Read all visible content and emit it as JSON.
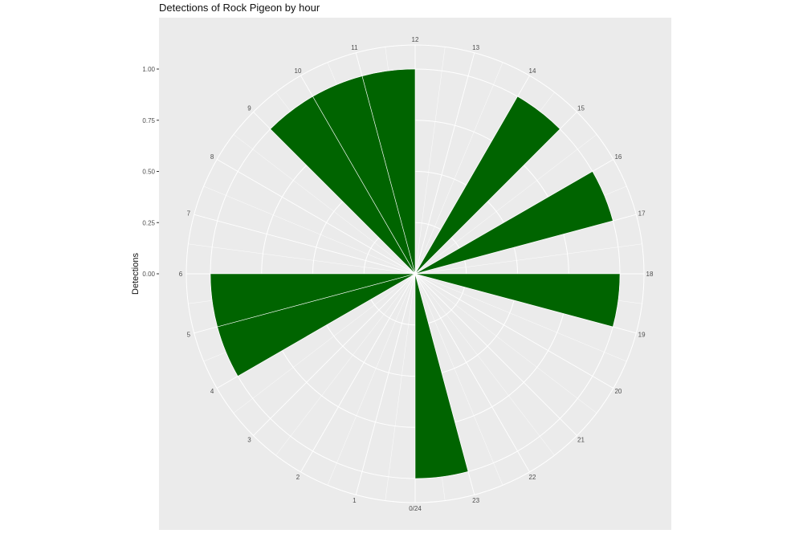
{
  "chart_data": {
    "type": "bar",
    "coord": "polar",
    "title": "Detections of Rock Pigeon by hour",
    "ylabel": "Detections",
    "xlabel": "",
    "categories": [
      "0/24",
      "1",
      "2",
      "3",
      "4",
      "5",
      "6",
      "7",
      "8",
      "9",
      "10",
      "11",
      "12",
      "13",
      "14",
      "15",
      "16",
      "17",
      "18",
      "19",
      "20",
      "21",
      "22",
      "23"
    ],
    "values": [
      0,
      0,
      0,
      0,
      1,
      1,
      0,
      0,
      0,
      1,
      1,
      1,
      0,
      0,
      1,
      0,
      1,
      0,
      1,
      0,
      0,
      0,
      0,
      1
    ],
    "y_ticks": [
      "0.00",
      "0.25",
      "0.50",
      "0.75",
      "1.00"
    ],
    "ylim": [
      0,
      1
    ],
    "grid": true,
    "colors": {
      "bar": "#006400",
      "panel": "#ebebeb",
      "grid": "#ffffff"
    }
  }
}
